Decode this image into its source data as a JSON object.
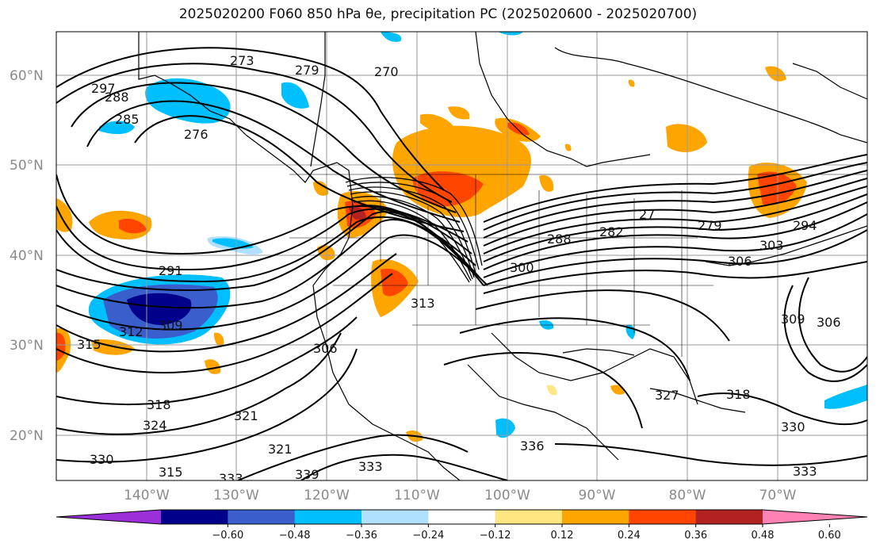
{
  "title": "2025020200 F060 850 hPa θe, precipitation PC (2025020600 - 2025020700)",
  "map": {
    "lat_labels": [
      "60°N",
      "50°N",
      "40°N",
      "30°N",
      "20°N"
    ],
    "lon_labels": [
      "140°W",
      "130°W",
      "120°W",
      "110°W",
      "100°W",
      "90°W",
      "80°W",
      "70°W"
    ],
    "theta_e_labels": [
      "273",
      "279",
      "270",
      "297",
      "288",
      "285",
      "276",
      "291",
      "312",
      "309",
      "315",
      "306",
      "313",
      "300",
      "288",
      "282",
      "279",
      "27",
      "306",
      "303",
      "294",
      "309",
      "306",
      "318",
      "324",
      "321",
      "321",
      "327",
      "318",
      "330",
      "336",
      "330",
      "315",
      "333",
      "339",
      "333",
      "333"
    ]
  },
  "colorbar": {
    "ticks": [
      "−0.60",
      "−0.48",
      "−0.36",
      "−0.24",
      "−0.12",
      "0.12",
      "0.24",
      "0.36",
      "0.48",
      "0.60"
    ],
    "colors": [
      "#9b30d9",
      "#00008b",
      "#3a5fcd",
      "#00bfff",
      "#b0e0ff",
      "#ffffff",
      "#ffe680",
      "#ffa500",
      "#ff4500",
      "#b22222",
      "#ff82b4"
    ]
  }
}
